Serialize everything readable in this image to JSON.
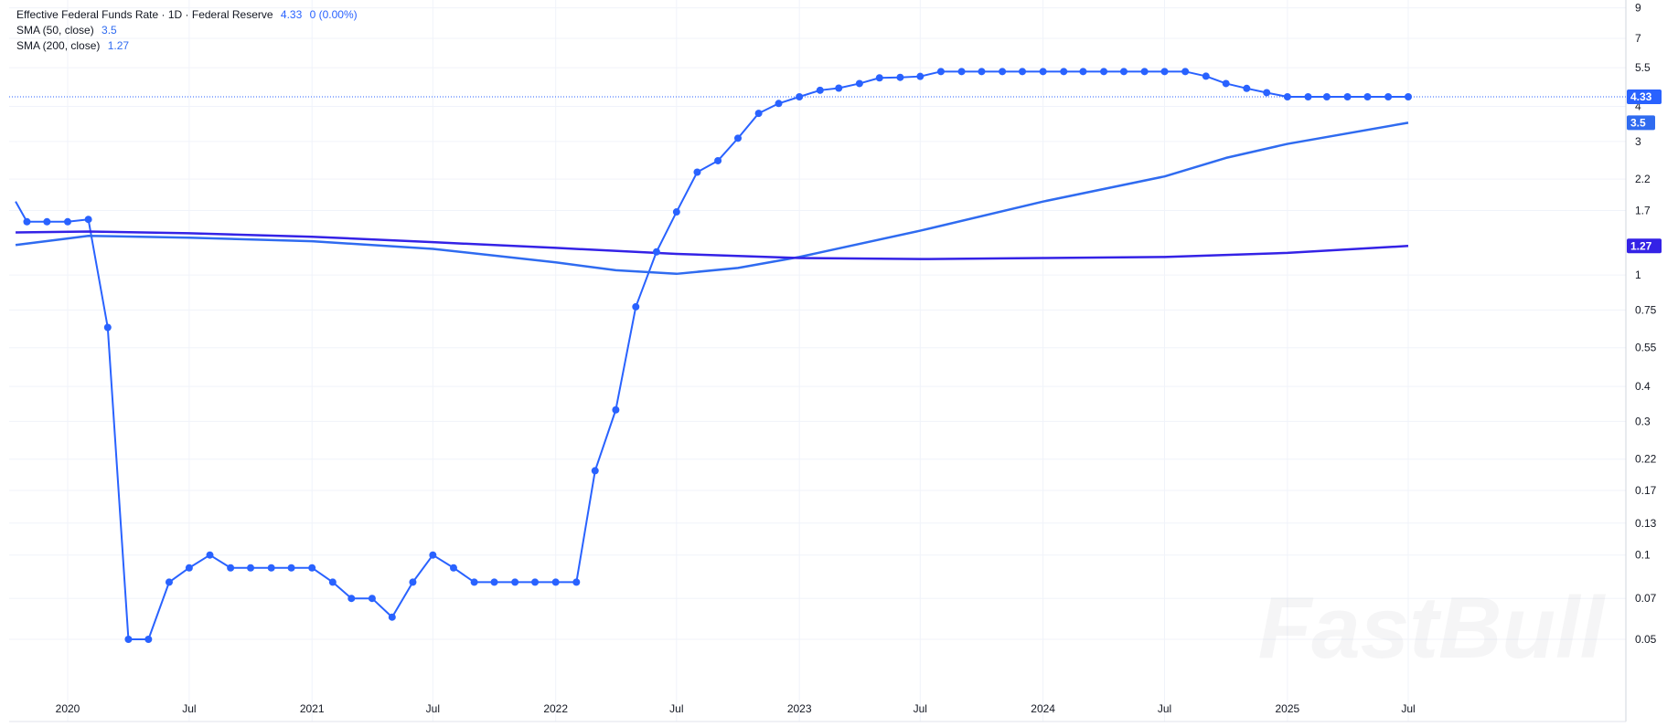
{
  "legend": {
    "title": "Effective Federal Funds Rate · 1D · Federal Reserve",
    "price": "4.33",
    "change": "0 (0.00%)",
    "sma50_label": "SMA (50, close)",
    "sma50_value": "3.5",
    "sma200_label": "SMA (200, close)",
    "sma200_value": "1.27"
  },
  "watermark": "FastBull",
  "colors": {
    "price_line": "#2962ff",
    "sma50": "#2f6bf0",
    "sma200": "#3422e6",
    "grid": "#f0f3fa",
    "price_tag": "#2962ff",
    "sma50_tag": "#2f6bf0",
    "sma200_tag": "#3422e6"
  },
  "chart_data": {
    "type": "line",
    "title": "Effective Federal Funds Rate · 1D · Federal Reserve",
    "y_scale": "log",
    "y_ticks": [
      "9",
      "7",
      "5.5",
      "4",
      "3",
      "2.2",
      "1.7",
      "1",
      "0.75",
      "0.55",
      "0.4",
      "0.3",
      "0.22",
      "0.17",
      "0.13",
      "0.1",
      "0.07",
      "0.05"
    ],
    "x_ticks": [
      {
        "date": "2020-01",
        "label": "2020"
      },
      {
        "date": "2020-07",
        "label": "Jul"
      },
      {
        "date": "2021-01",
        "label": "2021"
      },
      {
        "date": "2021-07",
        "label": "Jul"
      },
      {
        "date": "2022-01",
        "label": "2022"
      },
      {
        "date": "2022-07",
        "label": "Jul"
      },
      {
        "date": "2023-01",
        "label": "2023"
      },
      {
        "date": "2023-07",
        "label": "Jul"
      },
      {
        "date": "2024-01",
        "label": "2024"
      },
      {
        "date": "2024-07",
        "label": "Jul"
      },
      {
        "date": "2025-01",
        "label": "2025"
      },
      {
        "date": "2025-07",
        "label": "Jul"
      }
    ],
    "x_range": [
      "2019-10-15",
      "2025-11-15"
    ],
    "last_value_tags": [
      "4.33",
      "3.5",
      "1.27"
    ],
    "series": [
      {
        "name": "Effective Federal Funds Rate",
        "markers": true,
        "points": [
          [
            "2019-10-15",
            1.83
          ],
          [
            "2019-11",
            1.55
          ],
          [
            "2019-12",
            1.55
          ],
          [
            "2020-01",
            1.55
          ],
          [
            "2020-02",
            1.58
          ],
          [
            "2020-03",
            0.65
          ],
          [
            "2020-04",
            0.05
          ],
          [
            "2020-05",
            0.05
          ],
          [
            "2020-06",
            0.08
          ],
          [
            "2020-07",
            0.09
          ],
          [
            "2020-08",
            0.1
          ],
          [
            "2020-09",
            0.09
          ],
          [
            "2020-10",
            0.09
          ],
          [
            "2020-11",
            0.09
          ],
          [
            "2020-12",
            0.09
          ],
          [
            "2021-01",
            0.09
          ],
          [
            "2021-02",
            0.08
          ],
          [
            "2021-03",
            0.07
          ],
          [
            "2021-04",
            0.07
          ],
          [
            "2021-05",
            0.06
          ],
          [
            "2021-06",
            0.08
          ],
          [
            "2021-07",
            0.1
          ],
          [
            "2021-08",
            0.09
          ],
          [
            "2021-09",
            0.08
          ],
          [
            "2021-10",
            0.08
          ],
          [
            "2021-11",
            0.08
          ],
          [
            "2021-12",
            0.08
          ],
          [
            "2022-01",
            0.08
          ],
          [
            "2022-02",
            0.08
          ],
          [
            "2022-03",
            0.2
          ],
          [
            "2022-04",
            0.33
          ],
          [
            "2022-05",
            0.77
          ],
          [
            "2022-06",
            1.21
          ],
          [
            "2022-07",
            1.68
          ],
          [
            "2022-08",
            2.33
          ],
          [
            "2022-09",
            2.56
          ],
          [
            "2022-10",
            3.08
          ],
          [
            "2022-11",
            3.78
          ],
          [
            "2022-12",
            4.1
          ],
          [
            "2023-01",
            4.33
          ],
          [
            "2023-02",
            4.57
          ],
          [
            "2023-03",
            4.65
          ],
          [
            "2023-04",
            4.83
          ],
          [
            "2023-05",
            5.06
          ],
          [
            "2023-06",
            5.08
          ],
          [
            "2023-07",
            5.12
          ],
          [
            "2023-08",
            5.33
          ],
          [
            "2023-09",
            5.33
          ],
          [
            "2023-10",
            5.33
          ],
          [
            "2023-11",
            5.33
          ],
          [
            "2023-12",
            5.33
          ],
          [
            "2024-01",
            5.33
          ],
          [
            "2024-02",
            5.33
          ],
          [
            "2024-03",
            5.33
          ],
          [
            "2024-04",
            5.33
          ],
          [
            "2024-05",
            5.33
          ],
          [
            "2024-06",
            5.33
          ],
          [
            "2024-07",
            5.33
          ],
          [
            "2024-08",
            5.33
          ],
          [
            "2024-09",
            5.13
          ],
          [
            "2024-10",
            4.83
          ],
          [
            "2024-11",
            4.64
          ],
          [
            "2024-12",
            4.48
          ],
          [
            "2025-01",
            4.33
          ],
          [
            "2025-02",
            4.33
          ],
          [
            "2025-03",
            4.33
          ],
          [
            "2025-04",
            4.33
          ],
          [
            "2025-05",
            4.33
          ],
          [
            "2025-06",
            4.33
          ],
          [
            "2025-07",
            4.33
          ]
        ]
      },
      {
        "name": "SMA (50, close)",
        "markers": false,
        "points": [
          [
            "2019-10-15",
            1.28
          ],
          [
            "2020-01",
            1.35
          ],
          [
            "2020-02",
            1.38
          ],
          [
            "2020-07",
            1.36
          ],
          [
            "2021-01",
            1.32
          ],
          [
            "2021-07",
            1.24
          ],
          [
            "2022-01",
            1.11
          ],
          [
            "2022-04",
            1.04
          ],
          [
            "2022-07",
            1.01
          ],
          [
            "2022-10",
            1.06
          ],
          [
            "2023-01",
            1.16
          ],
          [
            "2023-07",
            1.44
          ],
          [
            "2024-01",
            1.83
          ],
          [
            "2024-07",
            2.25
          ],
          [
            "2024-10",
            2.62
          ],
          [
            "2025-01",
            2.94
          ],
          [
            "2025-07",
            3.5
          ]
        ]
      },
      {
        "name": "SMA (200, close)",
        "markers": false,
        "points": [
          [
            "2019-10-15",
            1.42
          ],
          [
            "2020-02",
            1.43
          ],
          [
            "2020-07",
            1.41
          ],
          [
            "2021-01",
            1.37
          ],
          [
            "2021-07",
            1.31
          ],
          [
            "2022-01",
            1.25
          ],
          [
            "2022-07",
            1.19
          ],
          [
            "2023-01",
            1.15
          ],
          [
            "2023-07",
            1.14
          ],
          [
            "2024-01",
            1.15
          ],
          [
            "2024-07",
            1.16
          ],
          [
            "2025-01",
            1.2
          ],
          [
            "2025-07",
            1.27
          ]
        ]
      }
    ]
  }
}
